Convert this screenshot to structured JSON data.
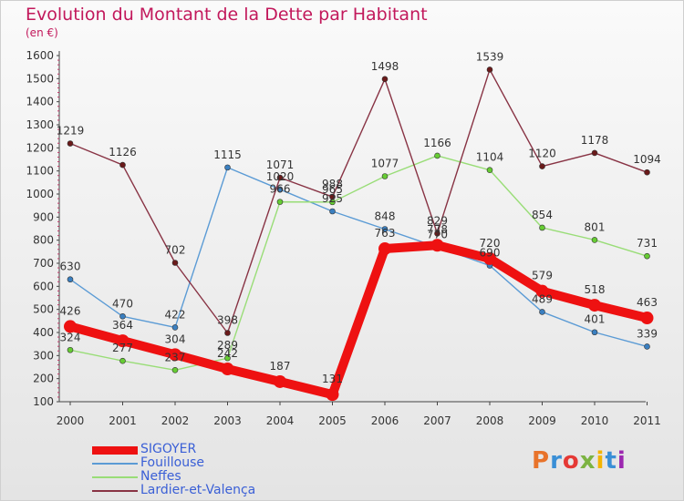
{
  "title": "Evolution du Montant de la Dette par Habitant",
  "unit": "(en €)",
  "logo": "Proxiti",
  "colors": {
    "title": "#c2185b",
    "axis": "#444444",
    "legend_text": "#3a5fd6"
  },
  "chart_data": {
    "type": "line",
    "title": "Evolution du Montant de la Dette par Habitant",
    "ylabel": "(en €)",
    "xlabel": "",
    "ylim": [
      100,
      1600
    ],
    "grid": false,
    "legend_position": "bottom-left",
    "categories": [
      "2000",
      "2001",
      "2002",
      "2003",
      "2004",
      "2005",
      "2006",
      "2007",
      "2008",
      "2009",
      "2010",
      "2011"
    ],
    "y_ticks": [
      100,
      200,
      300,
      400,
      500,
      600,
      700,
      800,
      900,
      1000,
      1100,
      1200,
      1300,
      1400,
      1500,
      1600
    ],
    "series": [
      {
        "name": "SIGOYER",
        "color": "#ee1111",
        "marker": "#ee1111",
        "width": 10,
        "values": [
          426,
          364,
          304,
          242,
          187,
          131,
          763,
          778,
          720,
          579,
          518,
          463
        ]
      },
      {
        "name": "Fouillouse",
        "color": "#5b9bd5",
        "marker": "#3a7fc0",
        "width": 1.4,
        "values": [
          630,
          470,
          422,
          1115,
          1020,
          925,
          848,
          770,
          690,
          489,
          401,
          339
        ]
      },
      {
        "name": "Neffes",
        "color": "#99dd77",
        "marker": "#66cc33",
        "width": 1.4,
        "values": [
          324,
          277,
          237,
          289,
          966,
          965,
          1077,
          1166,
          1104,
          854,
          801,
          731
        ]
      },
      {
        "name": "Lardier-et-Valença",
        "color": "#883344",
        "marker": "#6a1a1a",
        "width": 1.4,
        "values": [
          1219,
          1126,
          702,
          398,
          1071,
          988,
          1498,
          829,
          1539,
          1120,
          1178,
          1094
        ]
      }
    ]
  }
}
